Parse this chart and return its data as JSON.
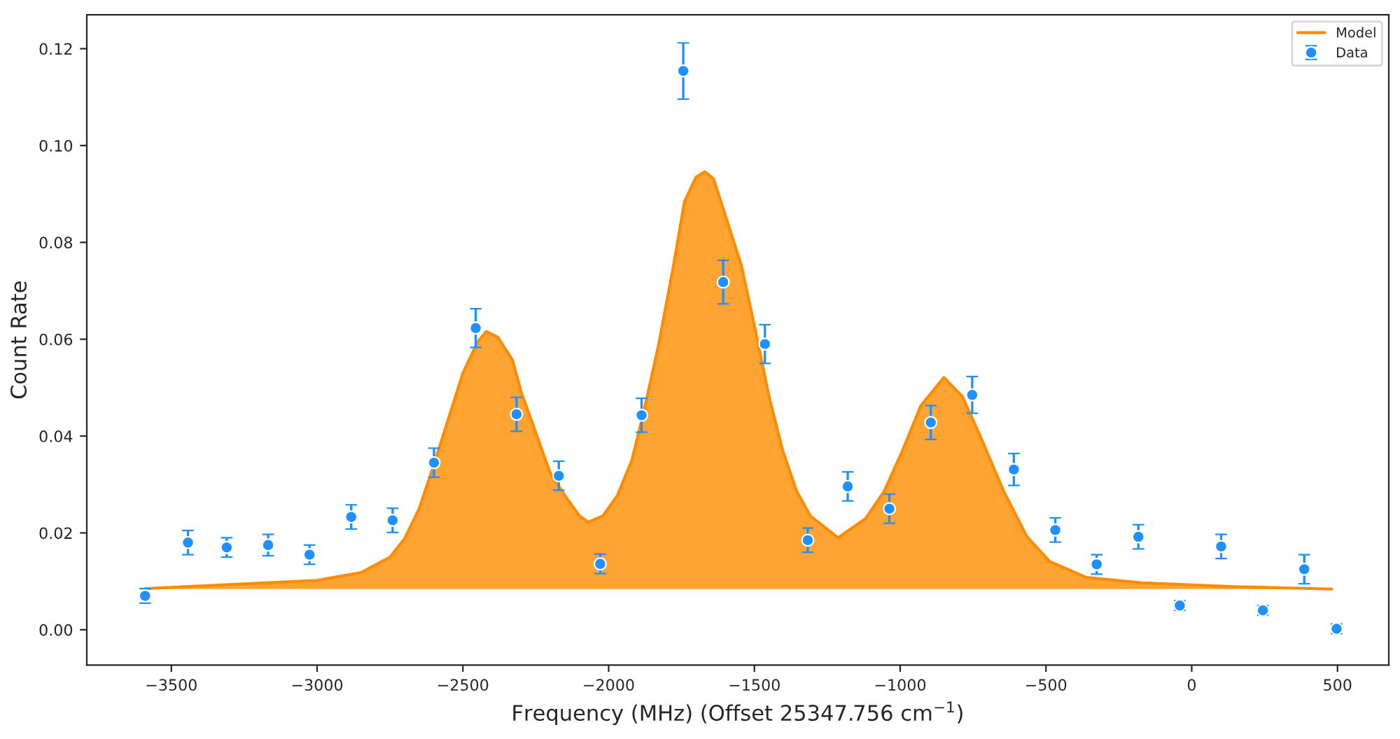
{
  "chart_data": {
    "type": "area",
    "xlabel": "Frequency (MHz) (Offset 25347.756 cm$^{−1}$)",
    "ylabel": "Count Rate",
    "xlim": [
      -3790,
      676
    ],
    "xticks": [
      -3500,
      -3000,
      -2500,
      -2000,
      -1500,
      -1000,
      -500,
      0,
      500
    ],
    "ylim": [
      -0.0073,
      0.127
    ],
    "yticks": [
      {
        "value": 0,
        "label": "0.00"
      },
      {
        "value": 0.02,
        "label": "0.02"
      },
      {
        "value": 0.04,
        "label": "0.04"
      },
      {
        "value": 0.06,
        "label": "0.06"
      },
      {
        "value": 0.08,
        "label": "0.08"
      },
      {
        "value": 0.1,
        "label": "0.10"
      },
      {
        "value": 0.12,
        "label": "0.12"
      }
    ],
    "grid": false,
    "legend": "top right",
    "series": [
      {
        "name": "Model",
        "color": "#ff8c00",
        "marker": "none",
        "x": [
          -3590,
          -3000,
          -2850,
          -2750,
          -2700,
          -2650,
          -2600,
          -2550,
          -2500,
          -2450,
          -2420,
          -2380,
          -2330,
          -2300,
          -2250,
          -2200,
          -2150,
          -2100,
          -2070,
          -2020,
          -1970,
          -1920,
          -1880,
          -1830,
          -1780,
          -1740,
          -1700,
          -1670,
          -1640,
          -1600,
          -1545,
          -1498,
          -1450,
          -1403,
          -1355,
          -1308,
          -1213,
          -1118,
          -1055,
          -992,
          -929,
          -850,
          -787,
          -724,
          -645,
          -566,
          -487,
          -361,
          -171,
          145,
          480
        ],
        "values": [
          0.0085,
          0.0102,
          0.0118,
          0.015,
          0.0188,
          0.025,
          0.034,
          0.0435,
          0.053,
          0.0594,
          0.0616,
          0.0604,
          0.0557,
          0.0491,
          0.0407,
          0.0323,
          0.0277,
          0.0235,
          0.0222,
          0.0235,
          0.0277,
          0.0351,
          0.0449,
          0.0585,
          0.0744,
          0.0884,
          0.0935,
          0.0946,
          0.0931,
          0.0856,
          0.0753,
          0.0622,
          0.0482,
          0.037,
          0.0286,
          0.0235,
          0.019,
          0.023,
          0.0286,
          0.037,
          0.0463,
          0.0521,
          0.0482,
          0.0398,
          0.0286,
          0.0193,
          0.0141,
          0.0108,
          0.0097,
          0.0089,
          0.0084
        ]
      },
      {
        "name": "Data",
        "type": "scatter",
        "color": "#1e90ff",
        "marker": "circle",
        "x": [
          -3590,
          -3443,
          -3310,
          -3168,
          -3026,
          -2883,
          -2741,
          -2599,
          -2456,
          -2316,
          -2171,
          -2029,
          -1887,
          -1744,
          -1607,
          -1464,
          -1317,
          -1180,
          -1037,
          -895,
          -753,
          -610,
          -468,
          -326,
          -183,
          -41,
          101,
          244,
          386,
          497
        ],
        "values": [
          0.007,
          0.018,
          0.017,
          0.0175,
          0.0155,
          0.0233,
          0.0226,
          0.0345,
          0.0623,
          0.0445,
          0.0318,
          0.0136,
          0.0443,
          0.1154,
          0.0718,
          0.059,
          0.0185,
          0.0296,
          0.025,
          0.0428,
          0.0485,
          0.0331,
          0.0206,
          0.0135,
          0.0192,
          0.005,
          0.0172,
          0.004,
          0.0125,
          0.0002
        ],
        "errors": [
          0.0015,
          0.0025,
          0.002,
          0.0022,
          0.002,
          0.0025,
          0.0025,
          0.003,
          0.004,
          0.0035,
          0.003,
          0.002,
          0.0035,
          0.0058,
          0.0045,
          0.004,
          0.0025,
          0.003,
          0.003,
          0.0035,
          0.0038,
          0.0033,
          0.0025,
          0.002,
          0.0025,
          0.001,
          0.0025,
          0.001,
          0.003,
          0.001
        ]
      }
    ]
  }
}
